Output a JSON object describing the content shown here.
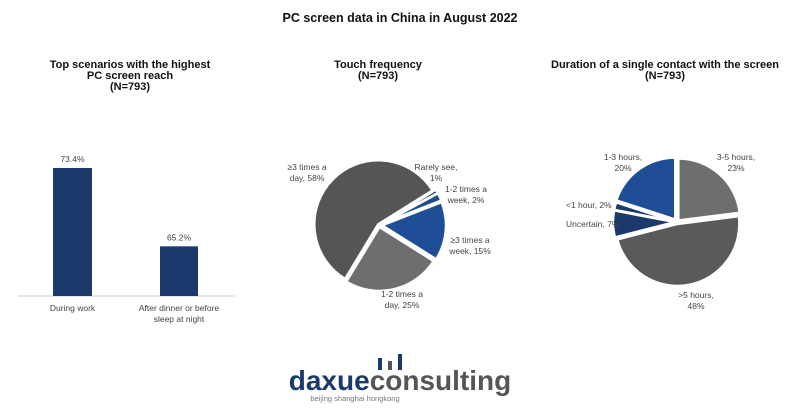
{
  "title": "PC screen data in China in August 2022",
  "chart_data": [
    {
      "type": "bar",
      "title": "Top scenarios with the highest PC screen reach (N=793)",
      "title_lines": [
        "Top scenarios with the highest",
        "PC screen reach",
        "(N=793)"
      ],
      "categories": [
        "During work",
        "After dinner or before sleep at night"
      ],
      "category_lines": [
        [
          "During work"
        ],
        [
          "After dinner or before",
          "sleep at night"
        ]
      ],
      "values": [
        73.4,
        65.2
      ],
      "data_labels": [
        "73.4%",
        "65.2%"
      ],
      "ylim": [
        60,
        75
      ],
      "color": "#1b3a6b",
      "grid": false
    },
    {
      "type": "pie",
      "title": "Touch frequency (N=793)",
      "title_lines": [
        "Touch frequency",
        "(N=793)"
      ],
      "slices": [
        {
          "label": "Rarely see",
          "value": 1,
          "text": [
            "Rarely see,",
            "1%"
          ],
          "color": "#1b3a6b"
        },
        {
          "label": "1-2 times a week",
          "value": 2,
          "text": [
            "1-2 times a",
            "week, 2%"
          ],
          "color": "#1f4e8c"
        },
        {
          "label": "≥3 times a week",
          "value": 15,
          "text": [
            "≥3 times a",
            "week, 15%"
          ],
          "color": "#1f4e96"
        },
        {
          "label": "1-2 times a day",
          "value": 25,
          "text": [
            "1-2 times a",
            "day, 25%"
          ],
          "color": "#6e6e6e"
        },
        {
          "label": "≥3 times a day",
          "value": 58,
          "text": [
            "≥3 times a",
            "day, 58%"
          ],
          "color": "#555555"
        }
      ]
    },
    {
      "type": "pie",
      "title": "Duration of a single contact with the screen (N=793)",
      "title_lines": [
        "Duration of a single contact with the screen",
        "(N=793)"
      ],
      "slices": [
        {
          "label": "3-5 hours",
          "value": 23,
          "text": [
            "3-5 hours,",
            "23%"
          ],
          "color": "#6e6e6e"
        },
        {
          "label": ">5 hours",
          "value": 48,
          "text": [
            ">5 hours,",
            "48%"
          ],
          "color": "#5a5a5a"
        },
        {
          "label": "Uncertain",
          "value": 7,
          "text": [
            "Uncertain, 7%"
          ],
          "color": "#1b3a6b"
        },
        {
          "label": "<1 hour",
          "value": 2,
          "text": [
            "<1 hour, 2%"
          ],
          "color": "#1b3a6b"
        },
        {
          "label": "1-3 hours",
          "value": 20,
          "text": [
            "1-3 hours,",
            "20%"
          ],
          "color": "#1f4e96"
        }
      ]
    }
  ],
  "logo": {
    "text_a": "daxue",
    "text_b": "consulting",
    "tagline": "beijing shanghai hongkong",
    "color_a": "#1b3a6b",
    "color_b": "#555555"
  }
}
